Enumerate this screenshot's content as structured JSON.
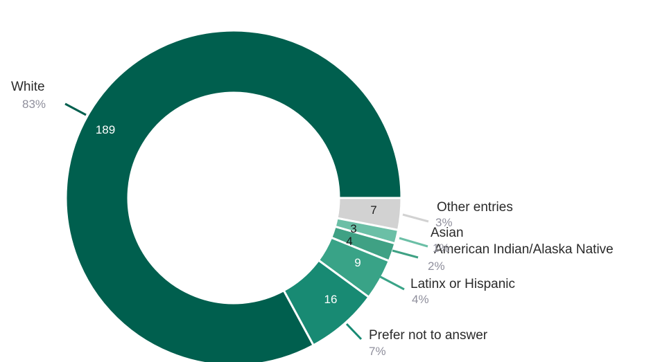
{
  "chart_data": {
    "type": "pie",
    "variant": "donut",
    "categories": [
      "White",
      "Prefer not to answer",
      "Latinx or Hispanic",
      "American Indian/Alaska Native",
      "Asian",
      "Other entries"
    ],
    "values": [
      189,
      16,
      9,
      4,
      3,
      7
    ],
    "percent_labels": [
      "83%",
      "7%",
      "4%",
      "2%",
      "1%",
      "3%"
    ],
    "colors": [
      "#005f4e",
      "#188a73",
      "#39a387",
      "#3fa184",
      "#6bbfa6",
      "#d2d2d2"
    ],
    "value_label_colors": [
      "#ffffff",
      "#ffffff",
      "#ffffff",
      "#1a1a1a",
      "#1a1a1a",
      "#1a1a1a"
    ],
    "start_angle_deg": 0,
    "direction": "clockwise",
    "legend": "none"
  }
}
